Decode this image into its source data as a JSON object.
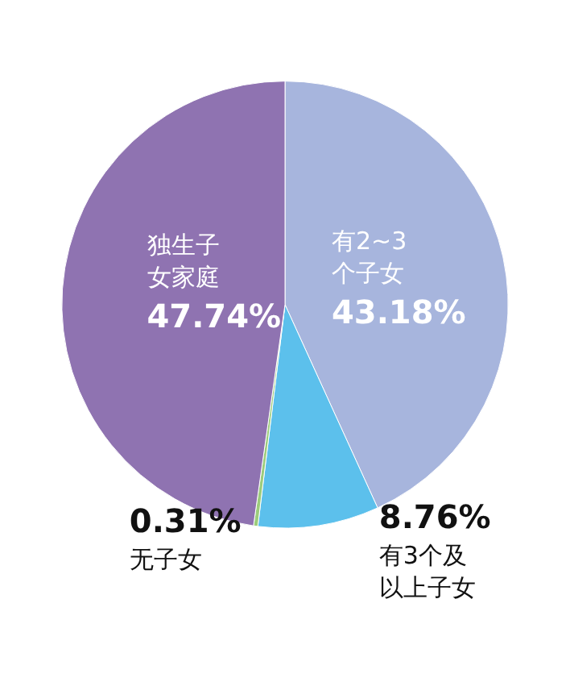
{
  "chart_data": {
    "type": "pie",
    "categories": [
      "有2~3个子女",
      "有3个及以上子女",
      "无子女",
      "独生子女家庭"
    ],
    "values": [
      43.18,
      8.76,
      0.31,
      47.74
    ],
    "value_labels": [
      "43.18%",
      "8.76%",
      "0.31%",
      "47.74%"
    ],
    "colors": [
      "#a7b5dd",
      "#5cc0ec",
      "#9ccc7c",
      "#8f73b1"
    ],
    "legend": false
  }
}
